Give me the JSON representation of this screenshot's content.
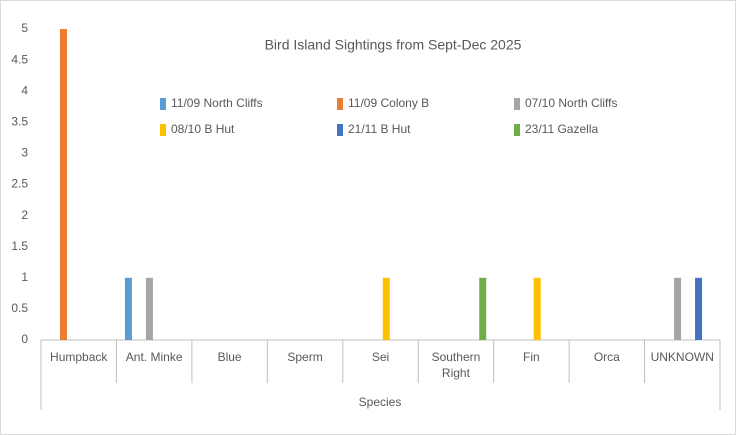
{
  "chart_data": {
    "type": "bar",
    "title": "Bird Island Sightings from Sept-Dec 2025",
    "x_label": "Species",
    "categories": [
      "Humpback",
      "Ant. Minke",
      "Blue",
      "Sperm",
      "Sei",
      "Southern Right",
      "Fin",
      "Orca",
      "UNKNOWN"
    ],
    "series": [
      {
        "name": "11/09 North Cliffs",
        "color": "#5b9bd5",
        "values": [
          null,
          1,
          null,
          null,
          null,
          null,
          null,
          null,
          null
        ]
      },
      {
        "name": "11/09 Colony B",
        "color": "#ed7d31",
        "values": [
          5,
          null,
          null,
          null,
          null,
          null,
          null,
          null,
          null
        ]
      },
      {
        "name": "07/10 North Cliffs",
        "color": "#a5a5a5",
        "values": [
          null,
          1,
          null,
          null,
          null,
          null,
          null,
          null,
          1
        ]
      },
      {
        "name": "08/10 B Hut",
        "color": "#ffc000",
        "values": [
          null,
          null,
          null,
          null,
          1,
          null,
          1,
          null,
          null
        ]
      },
      {
        "name": "21/11 B Hut",
        "color": "#4472c4",
        "values": [
          null,
          null,
          null,
          null,
          null,
          null,
          null,
          null,
          1
        ]
      },
      {
        "name": "23/11 Gazella",
        "color": "#70ad47",
        "values": [
          null,
          null,
          null,
          null,
          null,
          1,
          null,
          null,
          null
        ]
      }
    ],
    "ylim": [
      0,
      5
    ],
    "yticks": [
      0,
      0.5,
      1,
      1.5,
      2,
      2.5,
      3,
      3.5,
      4,
      4.5,
      5
    ],
    "grid": false
  }
}
